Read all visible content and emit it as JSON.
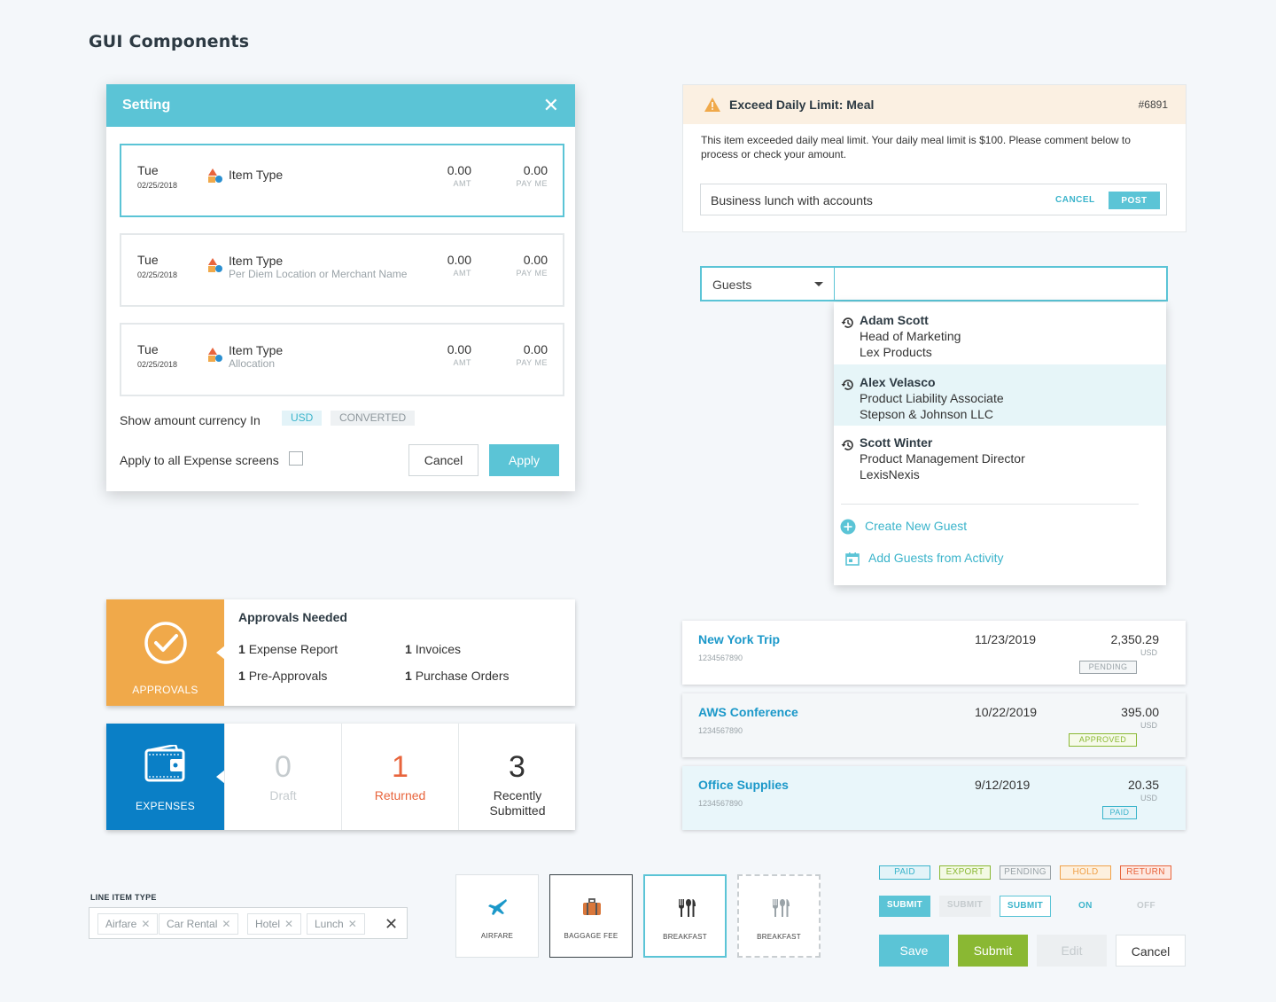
{
  "page_title": "GUI Components",
  "setting_dialog": {
    "title": "Setting",
    "rows": [
      {
        "day": "Tue",
        "date": "02/25/2018",
        "type": "Item Type",
        "sub": "",
        "amt": "0.00",
        "amt_label": "AMT",
        "pay": "0.00",
        "pay_label": "PAY ME"
      },
      {
        "day": "Tue",
        "date": "02/25/2018",
        "type": "Item Type",
        "sub": "Per Diem Location or Merchant Name",
        "amt": "0.00",
        "amt_label": "AMT",
        "pay": "0.00",
        "pay_label": "PAY ME"
      },
      {
        "day": "Tue",
        "date": "02/25/2018",
        "type": "Item Type",
        "sub": "Allocation",
        "amt": "0.00",
        "amt_label": "AMT",
        "pay": "0.00",
        "pay_label": "PAY ME"
      }
    ],
    "currency_label": "Show amount currency In",
    "currency_usd": "USD",
    "currency_converted": "CONVERTED",
    "apply_all_label": "Apply to all Expense screens",
    "cancel": "Cancel",
    "apply": "Apply"
  },
  "alert": {
    "title": "Exceed Daily Limit: Meal",
    "id": "#6891",
    "body": "This item exceeded daily meal limit. Your daily meal limit is $100. Please comment below to process or check your amount.",
    "comment": "Business lunch with accounts",
    "cancel": "CANCEL",
    "post": "POST"
  },
  "guests": {
    "select_label": "Guests",
    "items": [
      {
        "name": "Adam Scott",
        "role": "Head of Marketing",
        "company": "Lex Products"
      },
      {
        "name": "Alex Velasco",
        "role": "Product Liability Associate",
        "company": "Stepson & Johnson LLC"
      },
      {
        "name": "Scott Winter",
        "role": "Product Management Director",
        "company": "LexisNexis"
      }
    ],
    "create_new": "Create New Guest",
    "add_from_activity": "Add Guests from Activity"
  },
  "approvals": {
    "side_label": "APPROVALS",
    "title": "Approvals Needed",
    "items": [
      {
        "count": "1",
        "label": "Expense Report"
      },
      {
        "count": "1",
        "label": "Invoices"
      },
      {
        "count": "1",
        "label": "Pre-Approvals"
      },
      {
        "count": "1",
        "label": "Purchase Orders"
      }
    ]
  },
  "expenses": {
    "side_label": "EXPENSES",
    "stats": [
      {
        "num": "0",
        "label": "Draft",
        "color": "#c5cbce"
      },
      {
        "num": "1",
        "label": "Returned",
        "color": "#e8643c"
      },
      {
        "num": "3",
        "label": "Recently Submitted",
        "color": "#333333"
      }
    ]
  },
  "trips": [
    {
      "name": "New York Trip",
      "id": "1234567890",
      "date": "11/23/2019",
      "amount": "2,350.29",
      "currency": "USD",
      "status": "PENDING",
      "status_color": "#9aa3a8"
    },
    {
      "name": "AWS Conference",
      "id": "1234567890",
      "date": "10/22/2019",
      "amount": "395.00",
      "currency": "USD",
      "status": "APPROVED",
      "status_color": "#8ab833"
    },
    {
      "name": "Office Supplies",
      "id": "1234567890",
      "date": "9/12/2019",
      "amount": "20.35",
      "currency": "USD",
      "status": "PAID",
      "status_color": "#3bb4cb"
    }
  ],
  "line_item": {
    "label": "LINE ITEM TYPE",
    "tags": [
      "Airfare",
      "Car Rental",
      "Hotel",
      "Lunch"
    ]
  },
  "tiles": [
    {
      "label": "AIRFARE",
      "icon": "airplane-icon"
    },
    {
      "label": "BAGGAGE FEE",
      "icon": "luggage-icon"
    },
    {
      "label": "BREAKFAST",
      "icon": "utensils-icon"
    },
    {
      "label": "BREAKFAST",
      "icon": "utensils-icon"
    }
  ],
  "status_chips": [
    {
      "label": "PAID",
      "color": "#3bb4cb",
      "bg": "#e3f3f8"
    },
    {
      "label": "EXPORT",
      "color": "#8ab833",
      "bg": "#f3f9e4"
    },
    {
      "label": "PENDING",
      "color": "#9aa3a8",
      "bg": "#f2f4f5"
    },
    {
      "label": "HOLD",
      "color": "#f0a24a",
      "bg": "#fdf0de"
    },
    {
      "label": "RETURN",
      "color": "#e8643c",
      "bg": "#fde8e1"
    }
  ],
  "small_buttons": {
    "submit_active": "SUBMIT",
    "submit_disabled": "SUBMIT",
    "submit_outline": "SUBMIT",
    "on": "ON",
    "off": "OFF"
  },
  "buttons": {
    "save": "Save",
    "submit": "Submit",
    "edit": "Edit",
    "cancel": "Cancel"
  },
  "colors": {
    "accent": "#5bc4d6",
    "approvals": "#f0a94a",
    "expenses": "#0a7fc6",
    "submit_green": "#8ab833"
  }
}
